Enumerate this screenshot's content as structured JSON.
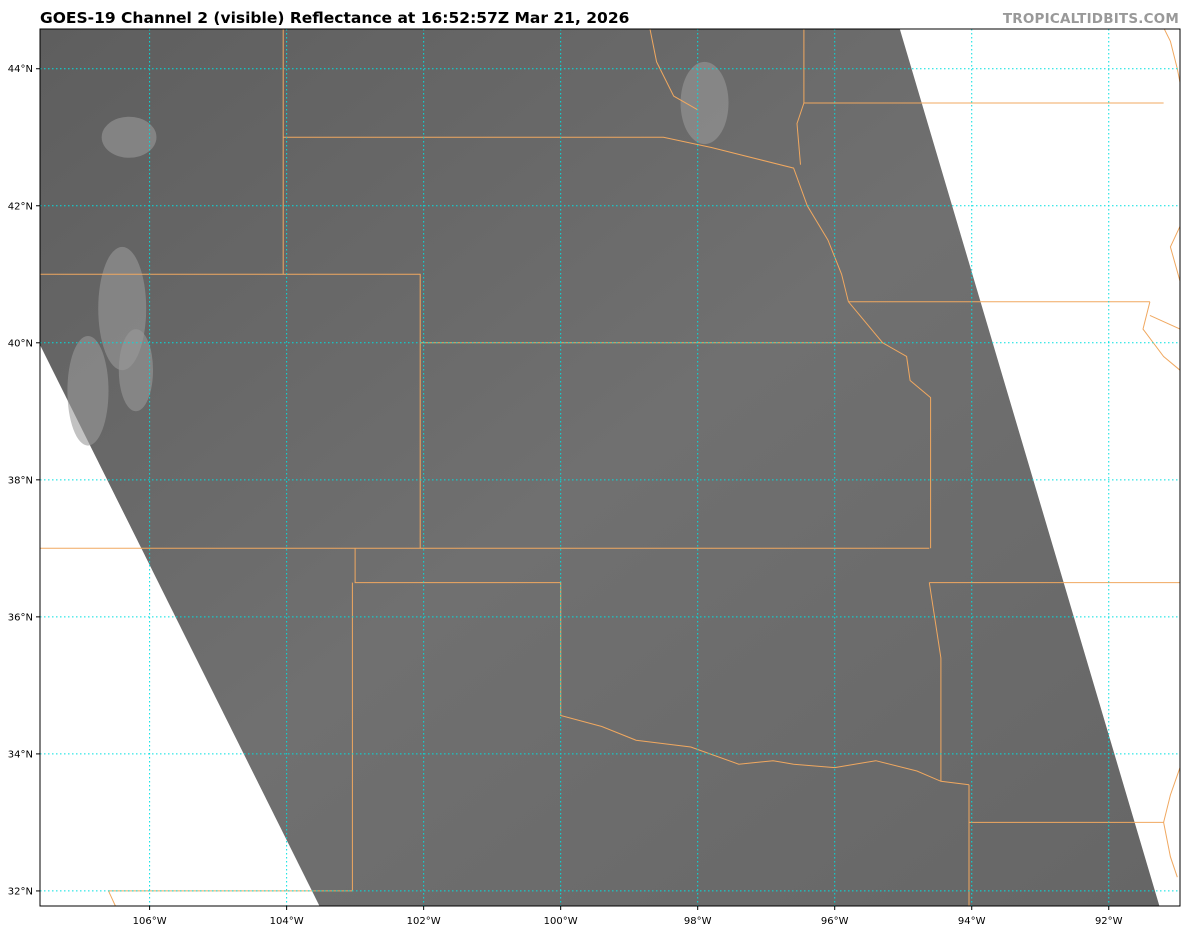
{
  "title": "GOES-19 Channel 2 (visible) Reflectance at 16:52:57Z Mar 21, 2026",
  "watermark": "TROPICALTIDBITS.COM",
  "map": {
    "projection": "plate-carree",
    "lon_range": [
      -107.6,
      -90.96
    ],
    "lat_range": [
      31.78,
      44.58
    ],
    "lon_ticks": [
      {
        "value": -106,
        "label": "106°W"
      },
      {
        "value": -104,
        "label": "104°W"
      },
      {
        "value": -102,
        "label": "102°W"
      },
      {
        "value": -100,
        "label": "100°W"
      },
      {
        "value": -98,
        "label": "98°W"
      },
      {
        "value": -96,
        "label": "96°W"
      },
      {
        "value": -94,
        "label": "94°W"
      },
      {
        "value": -92,
        "label": "92°W"
      }
    ],
    "lat_ticks": [
      {
        "value": 44,
        "label": "44°N"
      },
      {
        "value": 42,
        "label": "42°N"
      },
      {
        "value": 40,
        "label": "40°N"
      },
      {
        "value": 38,
        "label": "38°N"
      },
      {
        "value": 36,
        "label": "36°N"
      },
      {
        "value": 34,
        "label": "34°N"
      },
      {
        "value": 32,
        "label": "32°N"
      }
    ],
    "colors": {
      "imagery": "#6c6c6c",
      "gridlines": "#00e0e0",
      "borders": "#f0a860",
      "frame": "#000000"
    }
  }
}
